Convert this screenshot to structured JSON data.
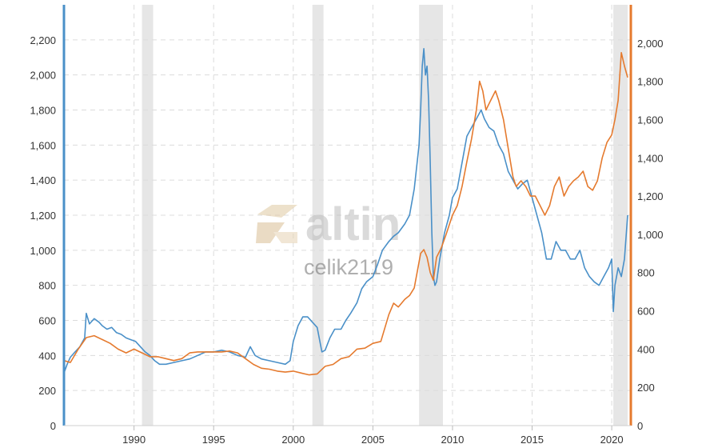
{
  "chart_data": {
    "type": "line",
    "title": "",
    "xlabel": "",
    "ylabel_left": "",
    "ylabel_right": "",
    "xlim": [
      1985.6,
      2021.2
    ],
    "x_ticks": [
      1990,
      1995,
      2000,
      2005,
      2010,
      2015,
      2020
    ],
    "x_tick_labels": [
      "1990",
      "1995",
      "2000",
      "2005",
      "2010",
      "2015",
      "2020"
    ],
    "ylim_left": [
      0,
      2400
    ],
    "ylim_right": [
      0,
      2200
    ],
    "y_ticks_left": [
      0,
      200,
      400,
      600,
      800,
      1000,
      1200,
      1400,
      1600,
      1800,
      2000,
      2200
    ],
    "y_tick_labels_left": [
      "0",
      "200",
      "400",
      "600",
      "800",
      "1,000",
      "1,200",
      "1,400",
      "1,600",
      "1,800",
      "2,000",
      "2,200"
    ],
    "y_ticks_right": [
      0,
      200,
      400,
      600,
      800,
      1000,
      1200,
      1400,
      1600,
      1800,
      2000
    ],
    "y_tick_labels_right": [
      "0",
      "200",
      "400",
      "600",
      "800",
      "1,000",
      "1,200",
      "1,400",
      "1,600",
      "1,800",
      "2,000"
    ],
    "grid": true,
    "recession_bands": [
      [
        1990.5,
        1991.2
      ],
      [
        2001.2,
        2001.9
      ],
      [
        2007.9,
        2009.4
      ],
      [
        2020.1,
        2021.0
      ]
    ],
    "series": [
      {
        "color": "#4a90c8",
        "axis": "left",
        "x": [
          1985.6,
          1985.8,
          1986.0,
          1986.3,
          1986.6,
          1986.9,
          1987.0,
          1987.2,
          1987.5,
          1987.8,
          1988.0,
          1988.3,
          1988.6,
          1988.9,
          1989.2,
          1989.5,
          1989.8,
          1990.1,
          1990.4,
          1990.7,
          1991.0,
          1991.3,
          1991.6,
          1992.0,
          1992.5,
          1993.0,
          1993.5,
          1994.0,
          1994.5,
          1995.0,
          1995.5,
          1996.0,
          1996.5,
          1997.0,
          1997.3,
          1997.6,
          1998.0,
          1998.5,
          1999.0,
          1999.5,
          1999.8,
          2000.0,
          2000.3,
          2000.6,
          2000.9,
          2001.2,
          2001.5,
          2001.8,
          2002.0,
          2002.3,
          2002.6,
          2003.0,
          2003.3,
          2003.6,
          2004.0,
          2004.3,
          2004.6,
          2005.0,
          2005.3,
          2005.6,
          2006.0,
          2006.3,
          2006.6,
          2007.0,
          2007.3,
          2007.6,
          2007.9,
          2008.0,
          2008.1,
          2008.2,
          2008.3,
          2008.4,
          2008.5,
          2008.6,
          2008.7,
          2008.8,
          2008.9,
          2009.0,
          2009.2,
          2009.5,
          2009.8,
          2010.0,
          2010.3,
          2010.6,
          2010.9,
          2011.2,
          2011.5,
          2011.8,
          2012.0,
          2012.3,
          2012.6,
          2012.9,
          2013.2,
          2013.5,
          2013.8,
          2014.1,
          2014.4,
          2014.7,
          2015.0,
          2015.3,
          2015.6,
          2015.9,
          2016.2,
          2016.5,
          2016.8,
          2017.1,
          2017.4,
          2017.7,
          2018.0,
          2018.3,
          2018.6,
          2018.9,
          2019.2,
          2019.5,
          2019.8,
          2020.0,
          2020.1,
          2020.2,
          2020.4,
          2020.6,
          2020.8,
          2021.0
        ],
        "y": [
          300,
          350,
          390,
          420,
          450,
          500,
          640,
          580,
          610,
          590,
          570,
          550,
          560,
          530,
          520,
          500,
          490,
          480,
          450,
          420,
          400,
          370,
          350,
          350,
          360,
          370,
          380,
          400,
          420,
          420,
          430,
          420,
          400,
          390,
          450,
          400,
          380,
          370,
          360,
          350,
          370,
          480,
          570,
          620,
          620,
          590,
          560,
          420,
          430,
          500,
          550,
          550,
          600,
          640,
          700,
          780,
          820,
          850,
          920,
          1000,
          1050,
          1080,
          1100,
          1150,
          1200,
          1350,
          1600,
          1800,
          2050,
          2150,
          2000,
          2050,
          1850,
          1500,
          1100,
          850,
          800,
          820,
          950,
          1100,
          1200,
          1300,
          1350,
          1500,
          1650,
          1700,
          1750,
          1800,
          1750,
          1700,
          1680,
          1600,
          1550,
          1450,
          1400,
          1350,
          1380,
          1400,
          1300,
          1200,
          1100,
          950,
          950,
          1050,
          1000,
          1000,
          950,
          950,
          1000,
          900,
          850,
          820,
          800,
          850,
          900,
          950,
          650,
          800,
          900,
          850,
          950,
          1200
        ]
      },
      {
        "color": "#e57a2e",
        "axis": "right",
        "x": [
          1985.6,
          1986.0,
          1986.5,
          1987.0,
          1987.5,
          1988.0,
          1988.5,
          1989.0,
          1989.5,
          1990.0,
          1990.5,
          1991.0,
          1991.5,
          1992.0,
          1992.5,
          1993.0,
          1993.5,
          1994.0,
          1994.5,
          1995.0,
          1995.5,
          1996.0,
          1996.5,
          1997.0,
          1997.5,
          1998.0,
          1998.5,
          1999.0,
          1999.5,
          2000.0,
          2000.5,
          2001.0,
          2001.5,
          2002.0,
          2002.5,
          2003.0,
          2003.5,
          2004.0,
          2004.5,
          2005.0,
          2005.5,
          2006.0,
          2006.3,
          2006.6,
          2007.0,
          2007.3,
          2007.6,
          2008.0,
          2008.2,
          2008.4,
          2008.6,
          2008.8,
          2009.0,
          2009.3,
          2009.6,
          2010.0,
          2010.3,
          2010.6,
          2010.9,
          2011.2,
          2011.5,
          2011.7,
          2011.9,
          2012.1,
          2012.4,
          2012.7,
          2012.9,
          2013.2,
          2013.5,
          2013.8,
          2014.0,
          2014.3,
          2014.6,
          2014.9,
          2015.2,
          2015.5,
          2015.8,
          2016.1,
          2016.4,
          2016.7,
          2017.0,
          2017.3,
          2017.6,
          2017.9,
          2018.2,
          2018.5,
          2018.8,
          2019.1,
          2019.4,
          2019.7,
          2020.0,
          2020.2,
          2020.4,
          2020.6,
          2020.8,
          2021.0
        ],
        "y": [
          340,
          330,
          400,
          460,
          470,
          450,
          430,
          400,
          380,
          400,
          380,
          360,
          360,
          350,
          340,
          350,
          380,
          385,
          385,
          385,
          385,
          390,
          380,
          350,
          320,
          300,
          295,
          285,
          280,
          285,
          275,
          265,
          270,
          310,
          320,
          350,
          360,
          400,
          405,
          430,
          440,
          580,
          640,
          620,
          660,
          680,
          720,
          900,
          920,
          880,
          800,
          760,
          880,
          930,
          1000,
          1100,
          1150,
          1250,
          1380,
          1500,
          1650,
          1800,
          1750,
          1650,
          1700,
          1750,
          1700,
          1600,
          1450,
          1300,
          1250,
          1280,
          1250,
          1200,
          1200,
          1150,
          1100,
          1150,
          1250,
          1300,
          1200,
          1250,
          1280,
          1300,
          1330,
          1250,
          1230,
          1280,
          1400,
          1480,
          1520,
          1600,
          1700,
          1950,
          1880,
          1820
        ]
      }
    ]
  },
  "watermark": {
    "brand": "altin",
    "user": "celik2119"
  }
}
